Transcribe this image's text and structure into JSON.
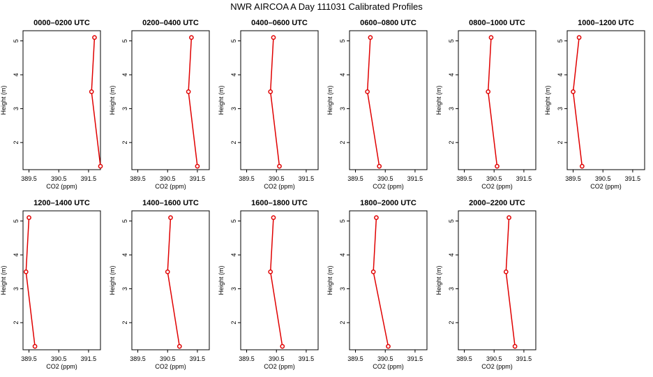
{
  "figure_title": "NWR AIRCOA A  Day 111031  Calibrated Profiles",
  "series_color": "#e00000",
  "axis_labels": {
    "x": "CO2 (ppm)",
    "y": "Height (m)"
  },
  "x_ticks": [
    "389.5",
    "390.5",
    "391.5"
  ],
  "y_ticks": [
    "2",
    "3",
    "4",
    "5"
  ],
  "chart_data": [
    {
      "type": "line",
      "title": "0000–0200 UTC",
      "xlabel": "CO2 (ppm)",
      "ylabel": "Height (m)",
      "xlim": [
        389.3,
        391.9
      ],
      "ylim": [
        1.2,
        5.3
      ],
      "points": [
        {
          "x": 391.7,
          "y": 5.1
        },
        {
          "x": 391.6,
          "y": 3.5
        },
        {
          "x": 391.9,
          "y": 1.3
        }
      ]
    },
    {
      "type": "line",
      "title": "0200–0400 UTC",
      "xlabel": "CO2 (ppm)",
      "ylabel": "Height (m)",
      "xlim": [
        389.3,
        391.9
      ],
      "ylim": [
        1.2,
        5.3
      ],
      "points": [
        {
          "x": 391.3,
          "y": 5.1
        },
        {
          "x": 391.2,
          "y": 3.5
        },
        {
          "x": 391.5,
          "y": 1.3
        }
      ]
    },
    {
      "type": "line",
      "title": "0400–0600 UTC",
      "xlabel": "CO2 (ppm)",
      "ylabel": "Height (m)",
      "xlim": [
        389.3,
        391.9
      ],
      "ylim": [
        1.2,
        5.3
      ],
      "points": [
        {
          "x": 390.4,
          "y": 5.1
        },
        {
          "x": 390.3,
          "y": 3.5
        },
        {
          "x": 390.6,
          "y": 1.3
        }
      ]
    },
    {
      "type": "line",
      "title": "0600–0800 UTC",
      "xlabel": "CO2 (ppm)",
      "ylabel": "Height (m)",
      "xlim": [
        389.3,
        391.9
      ],
      "ylim": [
        1.2,
        5.3
      ],
      "points": [
        {
          "x": 390.0,
          "y": 5.1
        },
        {
          "x": 389.9,
          "y": 3.5
        },
        {
          "x": 390.3,
          "y": 1.3
        }
      ]
    },
    {
      "type": "line",
      "title": "0800–1000 UTC",
      "xlabel": "CO2 (ppm)",
      "ylabel": "Height (m)",
      "xlim": [
        389.3,
        391.9
      ],
      "ylim": [
        1.2,
        5.3
      ],
      "points": [
        {
          "x": 390.4,
          "y": 5.1
        },
        {
          "x": 390.3,
          "y": 3.5
        },
        {
          "x": 390.6,
          "y": 1.3
        }
      ]
    },
    {
      "type": "line",
      "title": "1000–1200 UTC",
      "xlabel": "CO2 (ppm)",
      "ylabel": "Height (m)",
      "xlim": [
        389.3,
        391.9
      ],
      "ylim": [
        1.2,
        5.3
      ],
      "points": [
        {
          "x": 389.7,
          "y": 5.1
        },
        {
          "x": 389.5,
          "y": 3.5
        },
        {
          "x": 389.8,
          "y": 1.3
        }
      ]
    },
    {
      "type": "line",
      "title": "1200–1400 UTC",
      "xlabel": "CO2 (ppm)",
      "ylabel": "Height (m)",
      "xlim": [
        389.3,
        391.9
      ],
      "ylim": [
        1.2,
        5.3
      ],
      "points": [
        {
          "x": 389.5,
          "y": 5.1
        },
        {
          "x": 389.4,
          "y": 3.5
        },
        {
          "x": 389.7,
          "y": 1.3
        }
      ]
    },
    {
      "type": "line",
      "title": "1400–1600 UTC",
      "xlabel": "CO2 (ppm)",
      "ylabel": "Height (m)",
      "xlim": [
        389.3,
        391.9
      ],
      "ylim": [
        1.2,
        5.3
      ],
      "points": [
        {
          "x": 390.6,
          "y": 5.1
        },
        {
          "x": 390.5,
          "y": 3.5
        },
        {
          "x": 390.9,
          "y": 1.3
        }
      ]
    },
    {
      "type": "line",
      "title": "1600–1800 UTC",
      "xlabel": "CO2 (ppm)",
      "ylabel": "Height (m)",
      "xlim": [
        389.3,
        391.9
      ],
      "ylim": [
        1.2,
        5.3
      ],
      "points": [
        {
          "x": 390.4,
          "y": 5.1
        },
        {
          "x": 390.3,
          "y": 3.5
        },
        {
          "x": 390.7,
          "y": 1.3
        }
      ]
    },
    {
      "type": "line",
      "title": "1800–2000 UTC",
      "xlabel": "CO2 (ppm)",
      "ylabel": "Height (m)",
      "xlim": [
        389.3,
        391.9
      ],
      "ylim": [
        1.2,
        5.3
      ],
      "points": [
        {
          "x": 390.2,
          "y": 5.1
        },
        {
          "x": 390.1,
          "y": 3.5
        },
        {
          "x": 390.6,
          "y": 1.3
        }
      ]
    },
    {
      "type": "line",
      "title": "2000–2200 UTC",
      "xlabel": "CO2 (ppm)",
      "ylabel": "Height (m)",
      "xlim": [
        389.3,
        391.9
      ],
      "ylim": [
        1.2,
        5.3
      ],
      "points": [
        {
          "x": 391.0,
          "y": 5.1
        },
        {
          "x": 390.9,
          "y": 3.5
        },
        {
          "x": 391.2,
          "y": 1.3
        }
      ]
    }
  ]
}
